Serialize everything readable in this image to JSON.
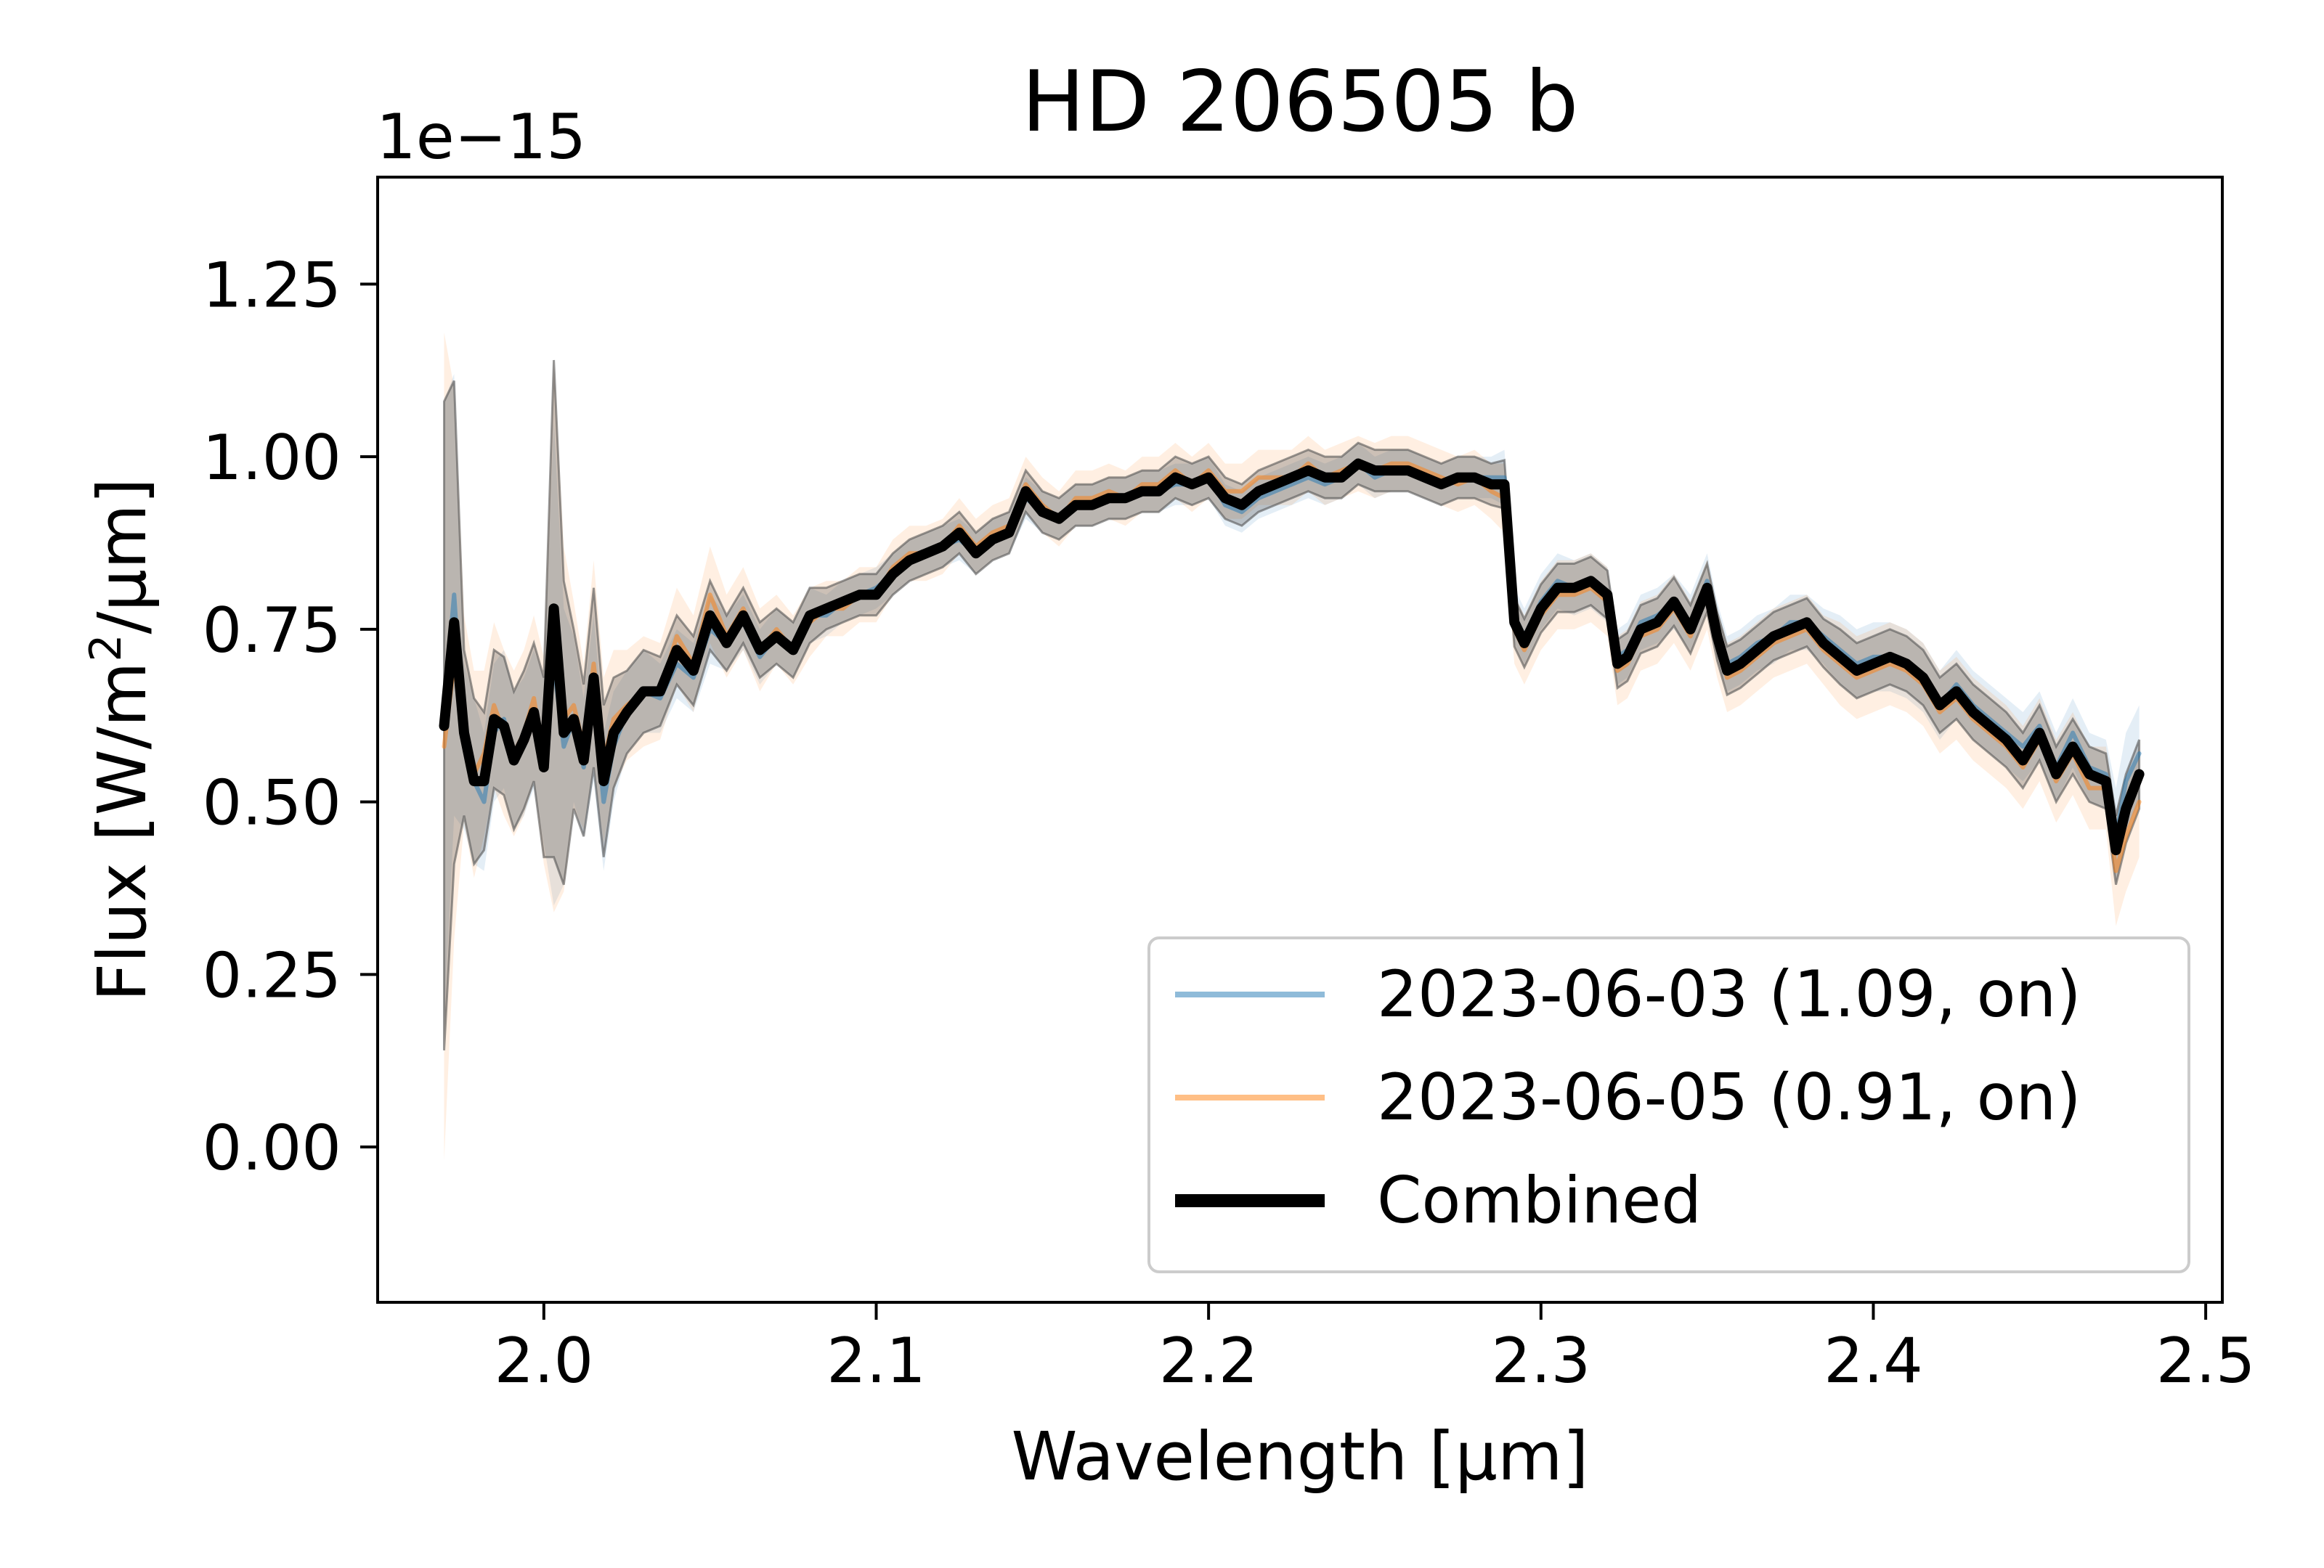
{
  "chart_data": {
    "type": "line",
    "title": "HD 206505 b",
    "xlabel": "Wavelength [µm]",
    "ylabel": "Flux [W/m²/µm]",
    "ylabel_parts": {
      "pre": "Flux [W/m",
      "sup": "2",
      "post": "/µm]"
    },
    "offset_text": "1e−15",
    "xlim": [
      1.95,
      2.505
    ],
    "ylim": [
      -0.225,
      1.405
    ],
    "x_ticks": [
      2.0,
      2.1,
      2.2,
      2.3,
      2.4,
      2.5
    ],
    "x_tick_labels": [
      "2.0",
      "2.1",
      "2.2",
      "2.3",
      "2.4",
      "2.5"
    ],
    "y_ticks": [
      0.0,
      0.25,
      0.5,
      0.75,
      1.0,
      1.25
    ],
    "y_tick_labels": [
      "0.00",
      "0.25",
      "0.50",
      "0.75",
      "1.00",
      "1.25"
    ],
    "grid": false,
    "legend_position": "lower-right",
    "x": [
      1.97,
      1.973,
      1.976,
      1.979,
      1.982,
      1.985,
      1.988,
      1.991,
      1.994,
      1.997,
      2.0,
      2.003,
      2.006,
      2.009,
      2.012,
      2.015,
      2.018,
      2.021,
      2.025,
      2.03,
      2.035,
      2.04,
      2.045,
      2.05,
      2.055,
      2.06,
      2.065,
      2.07,
      2.075,
      2.08,
      2.085,
      2.09,
      2.095,
      2.1,
      2.105,
      2.11,
      2.115,
      2.12,
      2.125,
      2.13,
      2.135,
      2.14,
      2.145,
      2.15,
      2.155,
      2.16,
      2.165,
      2.17,
      2.175,
      2.18,
      2.185,
      2.19,
      2.195,
      2.2,
      2.205,
      2.21,
      2.215,
      2.22,
      2.225,
      2.23,
      2.235,
      2.24,
      2.245,
      2.25,
      2.255,
      2.26,
      2.265,
      2.27,
      2.275,
      2.28,
      2.285,
      2.289,
      2.292,
      2.295,
      2.3,
      2.305,
      2.31,
      2.315,
      2.32,
      2.323,
      2.326,
      2.33,
      2.335,
      2.34,
      2.345,
      2.35,
      2.353,
      2.356,
      2.36,
      2.365,
      2.37,
      2.375,
      2.38,
      2.385,
      2.39,
      2.395,
      2.4,
      2.405,
      2.41,
      2.415,
      2.42,
      2.425,
      2.43,
      2.435,
      2.44,
      2.445,
      2.45,
      2.455,
      2.46,
      2.465,
      2.47,
      2.473,
      2.476,
      2.48
    ],
    "series": [
      {
        "name": "2023-06-03 (1.09, on)",
        "color": "#1f77b4",
        "line_alpha": 0.5,
        "values": [
          0.63,
          0.8,
          0.58,
          0.53,
          0.5,
          0.6,
          0.62,
          0.56,
          0.58,
          0.62,
          0.56,
          0.7,
          0.58,
          0.62,
          0.55,
          0.65,
          0.5,
          0.58,
          0.63,
          0.66,
          0.65,
          0.7,
          0.68,
          0.75,
          0.73,
          0.76,
          0.71,
          0.74,
          0.72,
          0.77,
          0.77,
          0.79,
          0.8,
          0.81,
          0.83,
          0.85,
          0.86,
          0.87,
          0.88,
          0.86,
          0.88,
          0.89,
          0.94,
          0.92,
          0.91,
          0.93,
          0.93,
          0.94,
          0.94,
          0.95,
          0.95,
          0.96,
          0.96,
          0.97,
          0.93,
          0.92,
          0.94,
          0.95,
          0.96,
          0.97,
          0.96,
          0.97,
          0.99,
          0.97,
          0.98,
          0.98,
          0.97,
          0.96,
          0.97,
          0.97,
          0.97,
          0.97,
          0.77,
          0.74,
          0.79,
          0.82,
          0.81,
          0.82,
          0.8,
          0.71,
          0.72,
          0.76,
          0.77,
          0.79,
          0.76,
          0.82,
          0.75,
          0.7,
          0.71,
          0.73,
          0.74,
          0.76,
          0.76,
          0.74,
          0.72,
          0.7,
          0.71,
          0.71,
          0.7,
          0.68,
          0.64,
          0.67,
          0.64,
          0.62,
          0.6,
          0.58,
          0.61,
          0.55,
          0.6,
          0.55,
          0.54,
          0.45,
          0.53,
          0.57
        ],
        "err": [
          0.45,
          0.32,
          0.12,
          0.12,
          0.1,
          0.1,
          0.1,
          0.1,
          0.1,
          0.1,
          0.12,
          0.35,
          0.2,
          0.12,
          0.1,
          0.12,
          0.1,
          0.08,
          0.06,
          0.06,
          0.05,
          0.05,
          0.05,
          0.05,
          0.04,
          0.04,
          0.04,
          0.04,
          0.04,
          0.04,
          0.03,
          0.03,
          0.03,
          0.03,
          0.03,
          0.03,
          0.03,
          0.03,
          0.03,
          0.03,
          0.03,
          0.03,
          0.03,
          0.03,
          0.03,
          0.03,
          0.03,
          0.03,
          0.03,
          0.03,
          0.03,
          0.03,
          0.03,
          0.03,
          0.03,
          0.03,
          0.03,
          0.03,
          0.03,
          0.03,
          0.03,
          0.03,
          0.03,
          0.03,
          0.03,
          0.03,
          0.03,
          0.03,
          0.03,
          0.03,
          0.03,
          0.04,
          0.04,
          0.04,
          0.04,
          0.04,
          0.04,
          0.04,
          0.04,
          0.04,
          0.04,
          0.04,
          0.04,
          0.04,
          0.04,
          0.04,
          0.04,
          0.04,
          0.04,
          0.04,
          0.04,
          0.04,
          0.04,
          0.04,
          0.05,
          0.05,
          0.05,
          0.05,
          0.05,
          0.05,
          0.05,
          0.05,
          0.05,
          0.05,
          0.05,
          0.05,
          0.05,
          0.05,
          0.05,
          0.05,
          0.05,
          0.07,
          0.07,
          0.07
        ]
      },
      {
        "name": "2023-06-05 (0.91, on)",
        "color": "#ff7f0e",
        "line_alpha": 0.5,
        "values": [
          0.58,
          0.7,
          0.62,
          0.54,
          0.57,
          0.64,
          0.6,
          0.57,
          0.6,
          0.65,
          0.56,
          0.74,
          0.62,
          0.64,
          0.58,
          0.7,
          0.56,
          0.62,
          0.64,
          0.66,
          0.66,
          0.74,
          0.7,
          0.8,
          0.74,
          0.78,
          0.72,
          0.75,
          0.72,
          0.76,
          0.78,
          0.78,
          0.8,
          0.8,
          0.84,
          0.86,
          0.86,
          0.87,
          0.9,
          0.87,
          0.89,
          0.9,
          0.96,
          0.93,
          0.91,
          0.94,
          0.94,
          0.95,
          0.94,
          0.96,
          0.96,
          0.98,
          0.96,
          0.98,
          0.95,
          0.95,
          0.97,
          0.97,
          0.97,
          0.99,
          0.97,
          0.98,
          0.99,
          0.98,
          0.99,
          0.99,
          0.98,
          0.97,
          0.96,
          0.97,
          0.95,
          0.94,
          0.75,
          0.72,
          0.77,
          0.8,
          0.8,
          0.81,
          0.79,
          0.69,
          0.7,
          0.74,
          0.75,
          0.78,
          0.74,
          0.8,
          0.73,
          0.68,
          0.69,
          0.71,
          0.73,
          0.74,
          0.75,
          0.72,
          0.7,
          0.68,
          0.69,
          0.7,
          0.69,
          0.67,
          0.63,
          0.65,
          0.62,
          0.6,
          0.58,
          0.55,
          0.59,
          0.53,
          0.57,
          0.52,
          0.52,
          0.4,
          0.45,
          0.5
        ],
        "err": [
          0.6,
          0.4,
          0.15,
          0.15,
          0.12,
          0.12,
          0.12,
          0.12,
          0.12,
          0.12,
          0.15,
          0.4,
          0.25,
          0.15,
          0.12,
          0.15,
          0.12,
          0.1,
          0.08,
          0.08,
          0.07,
          0.07,
          0.07,
          0.07,
          0.06,
          0.06,
          0.06,
          0.05,
          0.05,
          0.05,
          0.04,
          0.04,
          0.04,
          0.04,
          0.04,
          0.04,
          0.04,
          0.04,
          0.04,
          0.04,
          0.04,
          0.04,
          0.04,
          0.04,
          0.04,
          0.04,
          0.04,
          0.04,
          0.04,
          0.04,
          0.04,
          0.04,
          0.04,
          0.04,
          0.04,
          0.04,
          0.04,
          0.04,
          0.04,
          0.04,
          0.04,
          0.04,
          0.04,
          0.04,
          0.04,
          0.04,
          0.04,
          0.04,
          0.04,
          0.04,
          0.04,
          0.05,
          0.05,
          0.05,
          0.05,
          0.05,
          0.05,
          0.05,
          0.05,
          0.05,
          0.05,
          0.05,
          0.05,
          0.05,
          0.05,
          0.05,
          0.05,
          0.05,
          0.05,
          0.05,
          0.05,
          0.05,
          0.05,
          0.05,
          0.06,
          0.06,
          0.06,
          0.06,
          0.06,
          0.06,
          0.06,
          0.06,
          0.06,
          0.06,
          0.06,
          0.06,
          0.06,
          0.06,
          0.06,
          0.06,
          0.06,
          0.08,
          0.08,
          0.08
        ]
      },
      {
        "name": "Combined",
        "color": "#000000",
        "line_alpha": 1.0,
        "values": [
          0.61,
          0.76,
          0.6,
          0.53,
          0.53,
          0.62,
          0.61,
          0.56,
          0.59,
          0.63,
          0.55,
          0.78,
          0.6,
          0.62,
          0.56,
          0.68,
          0.53,
          0.6,
          0.63,
          0.66,
          0.66,
          0.72,
          0.69,
          0.77,
          0.73,
          0.77,
          0.72,
          0.74,
          0.72,
          0.77,
          0.78,
          0.79,
          0.8,
          0.8,
          0.83,
          0.85,
          0.86,
          0.87,
          0.89,
          0.86,
          0.88,
          0.89,
          0.95,
          0.92,
          0.91,
          0.93,
          0.93,
          0.94,
          0.94,
          0.95,
          0.95,
          0.97,
          0.96,
          0.97,
          0.94,
          0.93,
          0.95,
          0.96,
          0.97,
          0.98,
          0.97,
          0.97,
          0.99,
          0.98,
          0.98,
          0.98,
          0.97,
          0.96,
          0.97,
          0.97,
          0.96,
          0.96,
          0.76,
          0.73,
          0.78,
          0.81,
          0.81,
          0.82,
          0.8,
          0.7,
          0.71,
          0.75,
          0.76,
          0.79,
          0.75,
          0.81,
          0.74,
          0.69,
          0.7,
          0.72,
          0.74,
          0.75,
          0.76,
          0.73,
          0.71,
          0.69,
          0.7,
          0.71,
          0.7,
          0.68,
          0.64,
          0.66,
          0.63,
          0.61,
          0.59,
          0.56,
          0.6,
          0.54,
          0.58,
          0.54,
          0.53,
          0.43,
          0.49,
          0.54
        ],
        "err": [
          0.47,
          0.35,
          0.12,
          0.12,
          0.1,
          0.1,
          0.1,
          0.1,
          0.1,
          0.1,
          0.13,
          0.36,
          0.22,
          0.13,
          0.11,
          0.13,
          0.11,
          0.08,
          0.06,
          0.06,
          0.05,
          0.05,
          0.05,
          0.05,
          0.04,
          0.04,
          0.04,
          0.04,
          0.04,
          0.04,
          0.03,
          0.03,
          0.03,
          0.03,
          0.03,
          0.03,
          0.03,
          0.03,
          0.03,
          0.03,
          0.03,
          0.03,
          0.03,
          0.03,
          0.03,
          0.03,
          0.03,
          0.03,
          0.03,
          0.03,
          0.03,
          0.03,
          0.03,
          0.03,
          0.03,
          0.03,
          0.03,
          0.03,
          0.03,
          0.03,
          0.03,
          0.03,
          0.03,
          0.03,
          0.03,
          0.03,
          0.03,
          0.03,
          0.03,
          0.03,
          0.03,
          0.035,
          0.035,
          0.035,
          0.035,
          0.035,
          0.035,
          0.035,
          0.035,
          0.035,
          0.035,
          0.035,
          0.035,
          0.035,
          0.035,
          0.035,
          0.035,
          0.035,
          0.035,
          0.035,
          0.035,
          0.035,
          0.035,
          0.035,
          0.04,
          0.04,
          0.04,
          0.04,
          0.04,
          0.04,
          0.04,
          0.04,
          0.04,
          0.04,
          0.04,
          0.04,
          0.04,
          0.04,
          0.04,
          0.04,
          0.04,
          0.05,
          0.05,
          0.05
        ]
      }
    ]
  }
}
